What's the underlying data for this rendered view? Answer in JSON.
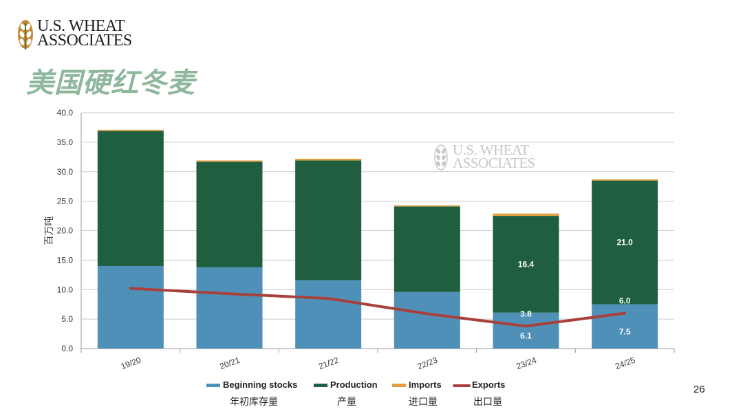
{
  "header": {
    "logo_text_line1": "U.S. WHEAT",
    "logo_text_line2": "ASSOCIATES",
    "title": "美国硬红冬麦"
  },
  "watermark": {
    "line1": "U.S. WHEAT",
    "line2": "ASSOCIATES"
  },
  "page_number": "26",
  "colors": {
    "title": "#8fb79c",
    "beginning_stocks": "#4f90b8",
    "production": "#1f5e3f",
    "imports": "#e0a040",
    "exports": "#a8413b"
  },
  "chart_data": {
    "type": "bar",
    "stacked": true,
    "categories": [
      "19/20",
      "20/21",
      "21/22",
      "22/23",
      "23/24",
      "24/25"
    ],
    "ylabel": "百万吨",
    "ylim": [
      0,
      40
    ],
    "yticks": [
      "0.0",
      "5.0",
      "10.0",
      "15.0",
      "20.0",
      "25.0",
      "30.0",
      "35.0",
      "40.0"
    ],
    "grid": true,
    "legend_position": "bottom",
    "series": [
      {
        "name": "Beginning stocks",
        "name_zh": "年初库存量",
        "type": "bar",
        "values": [
          14.0,
          13.8,
          11.6,
          9.6,
          6.1,
          7.5
        ]
      },
      {
        "name": "Production",
        "name_zh": "产量",
        "type": "bar",
        "values": [
          22.9,
          17.9,
          20.3,
          14.5,
          16.4,
          21.0
        ]
      },
      {
        "name": "Imports",
        "name_zh": "进口量",
        "type": "bar",
        "values": [
          0.2,
          0.2,
          0.3,
          0.2,
          0.4,
          0.2
        ]
      },
      {
        "name": "Exports",
        "name_zh": "出口量",
        "type": "line",
        "values": [
          10.2,
          9.3,
          8.5,
          5.9,
          3.8,
          6.0
        ]
      }
    ],
    "data_labels": [
      {
        "category": "23/24",
        "series": "Production",
        "text": "16.4"
      },
      {
        "category": "23/24",
        "series": "Exports",
        "text": "3.8"
      },
      {
        "category": "23/24",
        "series": "Beginning stocks",
        "text": "6.1"
      },
      {
        "category": "24/25",
        "series": "Production",
        "text": "21.0"
      },
      {
        "category": "24/25",
        "series": "Exports",
        "text": "6.0"
      },
      {
        "category": "24/25",
        "series": "Beginning stocks",
        "text": "7.5"
      }
    ]
  }
}
